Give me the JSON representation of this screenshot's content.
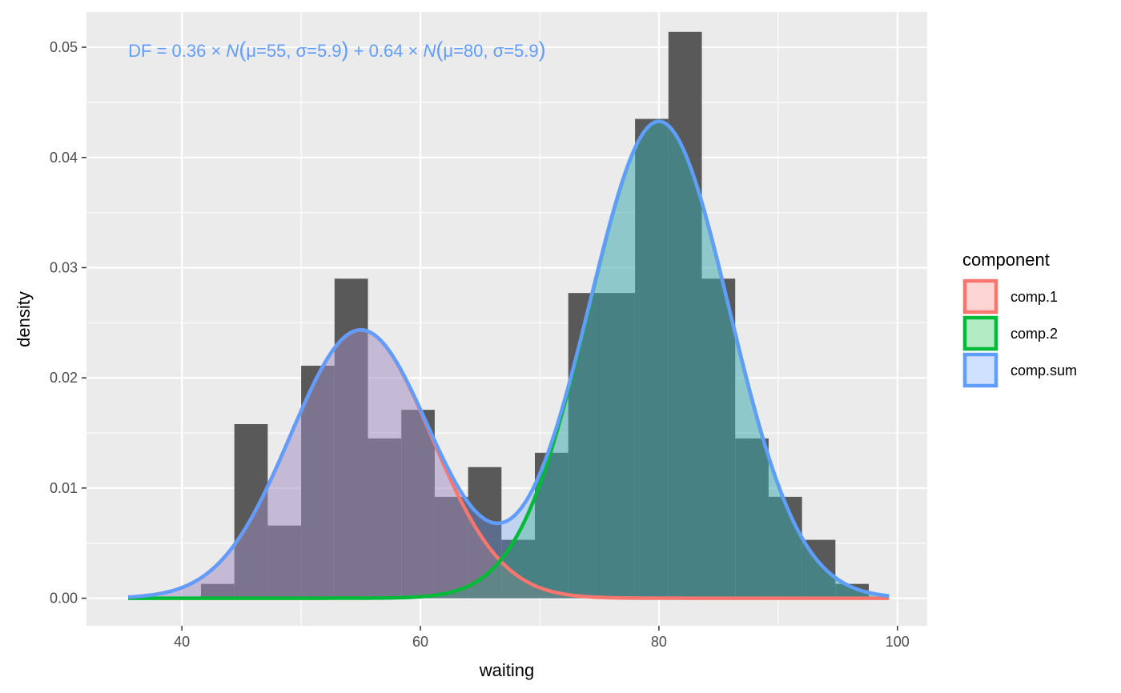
{
  "chart_data": {
    "type": "histogram_with_mixture_density",
    "xlabel": "waiting",
    "ylabel": "density",
    "xlim": [
      32,
      102.5
    ],
    "ylim": [
      -0.0025,
      0.0532
    ],
    "xticks": [
      40,
      60,
      80,
      100
    ],
    "xtick_labels": [
      "40",
      "60",
      "80",
      "100"
    ],
    "yticks": [
      0.0,
      0.01,
      0.02,
      0.03,
      0.04,
      0.05
    ],
    "ytick_labels": [
      "0.00",
      "0.01",
      "0.02",
      "0.03",
      "0.04",
      "0.05"
    ],
    "grid": true,
    "annotation": {
      "parts": [
        {
          "text": "DF = 0.36 × ",
          "italic": false
        },
        {
          "text": "N",
          "italic": true
        },
        {
          "text": "(",
          "italic": false,
          "big": true
        },
        {
          "text": "μ=55, σ=5.9",
          "italic": false
        },
        {
          "text": ")",
          "italic": false,
          "big": true
        },
        {
          "text": " + 0.64 × ",
          "italic": false
        },
        {
          "text": "N",
          "italic": true
        },
        {
          "text": "(",
          "italic": false,
          "big": true
        },
        {
          "text": "μ=80, σ=5.9",
          "italic": false
        },
        {
          "text": ")",
          "italic": false,
          "big": true
        }
      ],
      "x": 35.5,
      "y": 0.0497,
      "color": "#619CFF"
    },
    "histogram": {
      "color": "#595959",
      "bins": [
        {
          "x0": 41.6,
          "x1": 44.4,
          "y": 0.0013
        },
        {
          "x0": 44.4,
          "x1": 47.2,
          "y": 0.0158
        },
        {
          "x0": 47.2,
          "x1": 50.0,
          "y": 0.0066
        },
        {
          "x0": 50.0,
          "x1": 52.8,
          "y": 0.0211
        },
        {
          "x0": 52.8,
          "x1": 55.6,
          "y": 0.029
        },
        {
          "x0": 55.6,
          "x1": 58.4,
          "y": 0.0145
        },
        {
          "x0": 58.4,
          "x1": 61.2,
          "y": 0.0171
        },
        {
          "x0": 61.2,
          "x1": 64.0,
          "y": 0.0092
        },
        {
          "x0": 64.0,
          "x1": 66.8,
          "y": 0.0119
        },
        {
          "x0": 66.8,
          "x1": 69.6,
          "y": 0.0053
        },
        {
          "x0": 69.6,
          "x1": 72.4,
          "y": 0.0132
        },
        {
          "x0": 72.4,
          "x1": 75.2,
          "y": 0.0277
        },
        {
          "x0": 75.2,
          "x1": 78.0,
          "y": 0.0277
        },
        {
          "x0": 78.0,
          "x1": 80.8,
          "y": 0.0435
        },
        {
          "x0": 80.8,
          "x1": 83.6,
          "y": 0.0514
        },
        {
          "x0": 83.6,
          "x1": 86.4,
          "y": 0.029
        },
        {
          "x0": 86.4,
          "x1": 89.2,
          "y": 0.0145
        },
        {
          "x0": 89.2,
          "x1": 92.0,
          "y": 0.0092
        },
        {
          "x0": 92.0,
          "x1": 94.8,
          "y": 0.0053
        },
        {
          "x0": 94.8,
          "x1": 97.6,
          "y": 0.0013
        }
      ]
    },
    "components": [
      {
        "name": "comp.1",
        "weight": 0.36,
        "mu": 55,
        "sigma": 5.9,
        "color": "#F8766D"
      },
      {
        "name": "comp.2",
        "weight": 0.64,
        "mu": 80,
        "sigma": 5.9,
        "color": "#00BA38"
      },
      {
        "name": "comp.sum",
        "color": "#619CFF"
      }
    ],
    "curve_range": [
      35.5,
      99.3
    ],
    "legend": {
      "title": "component",
      "position": "right",
      "items": [
        "comp.1",
        "comp.2",
        "comp.sum"
      ]
    }
  }
}
